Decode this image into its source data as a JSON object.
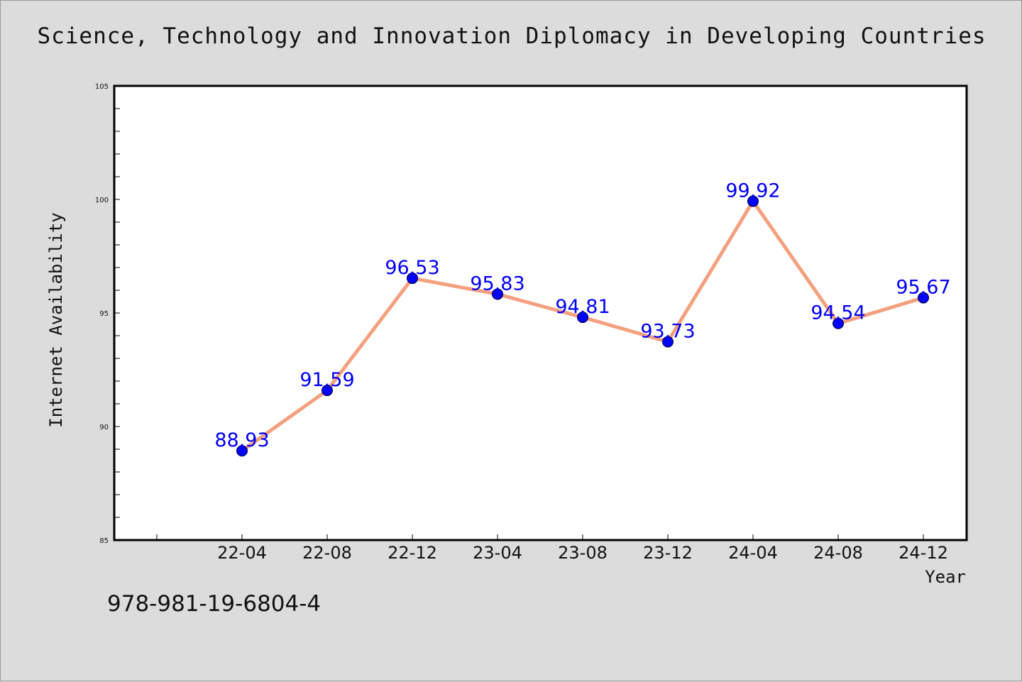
{
  "chart_data": {
    "type": "line",
    "title": "Science, Technology and Innovation Diplomacy in Developing Countries",
    "xlabel": "Year",
    "ylabel": "Internet Availability",
    "categories": [
      "22-04",
      "22-08",
      "22-12",
      "23-04",
      "23-08",
      "23-12",
      "24-04",
      "24-08",
      "24-12"
    ],
    "series": [
      {
        "values": [
          88.93,
          91.59,
          96.53,
          95.83,
          94.81,
          93.73,
          99.92,
          94.54,
          95.67
        ]
      }
    ],
    "data_labels": [
      "88.93",
      "91.59",
      "96.53",
      "95.83",
      "94.81",
      "93.73",
      "99.92",
      "94.54",
      "95.67"
    ],
    "ylim": [
      85,
      105
    ],
    "yticks": [
      "85",
      "90",
      "95",
      "100",
      "105"
    ],
    "grid": false,
    "colors": {
      "line": "#f4a07f",
      "marker": "#0000ff",
      "label": "#0000ff",
      "background": "#dcdcdc",
      "plot_area": "#ffffff"
    }
  },
  "footer": {
    "text": "978-981-19-6804-4"
  }
}
